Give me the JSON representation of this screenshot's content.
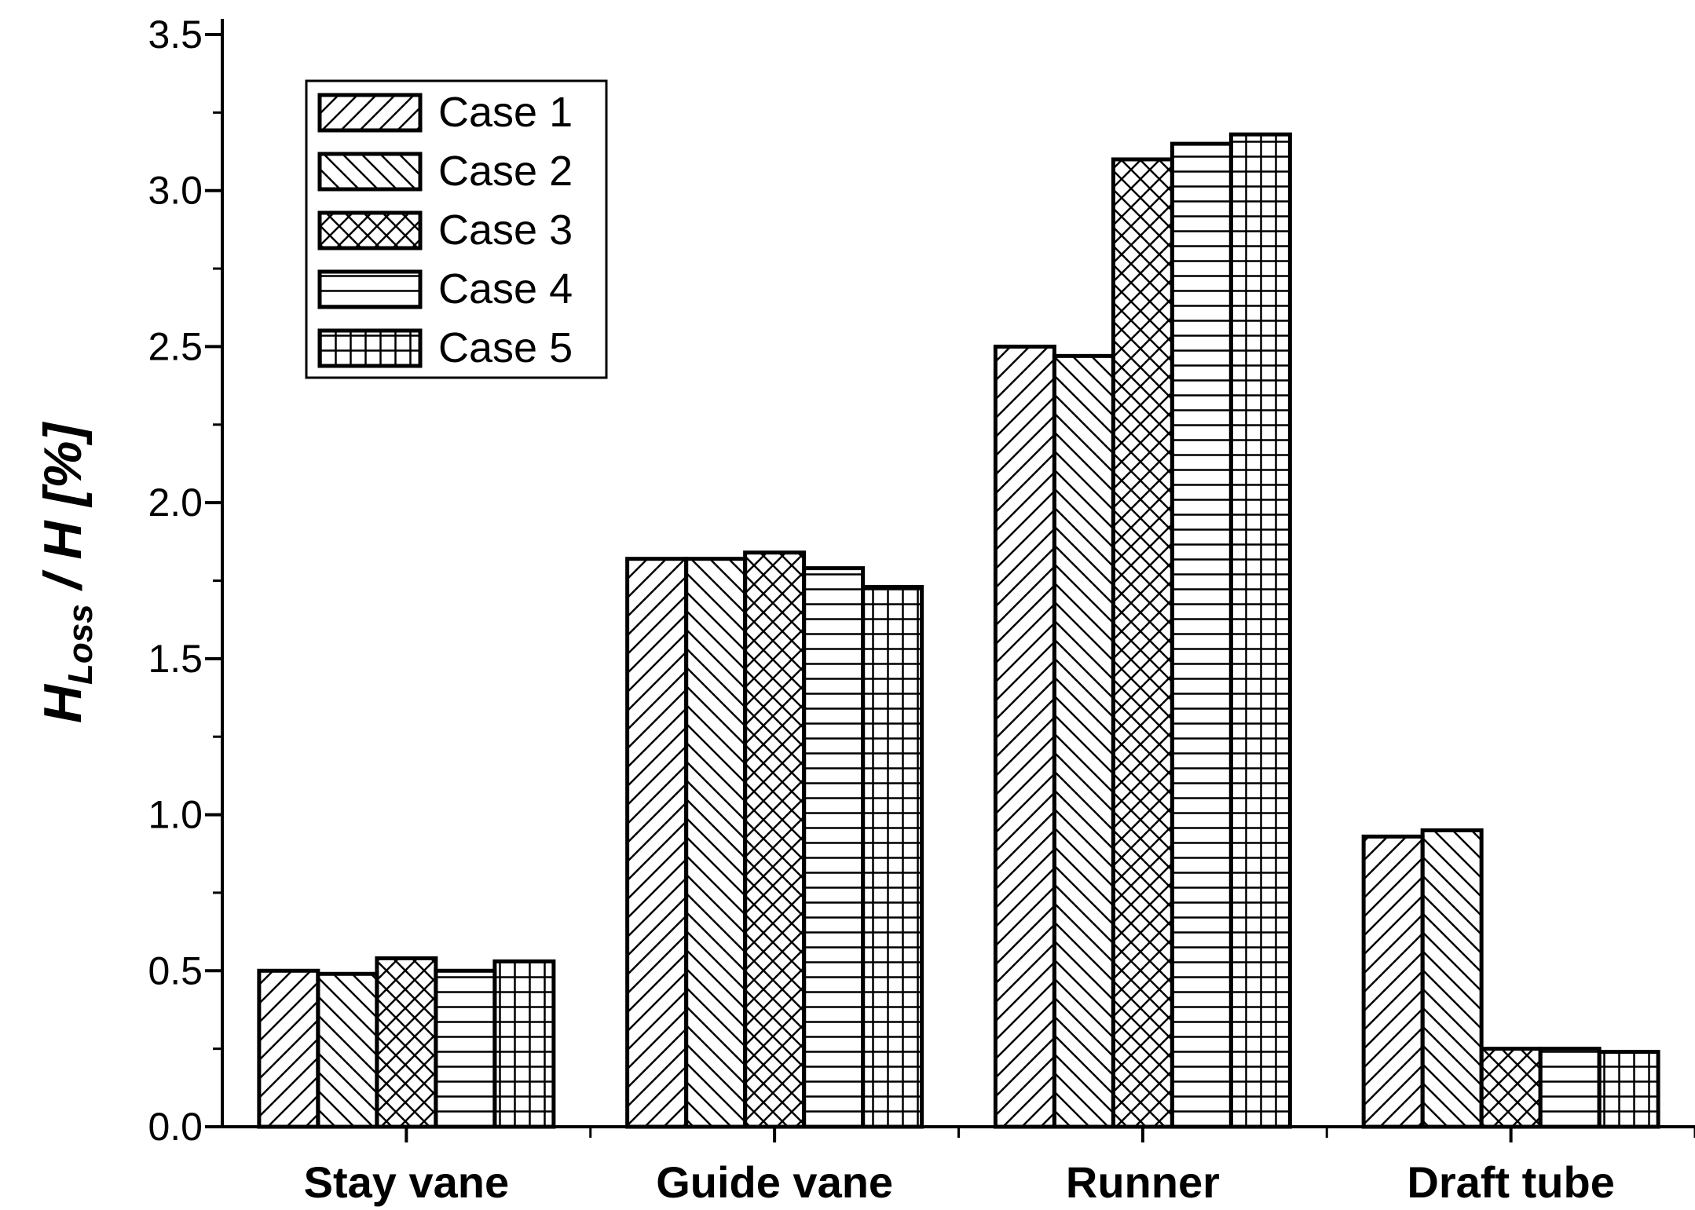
{
  "chart_data": {
    "type": "bar",
    "categories": [
      "Stay vane",
      "Guide vane",
      "Runner",
      "Draft tube"
    ],
    "series": [
      {
        "name": "Case 1",
        "pattern": "diag-up",
        "values": [
          0.5,
          1.82,
          2.5,
          0.93
        ]
      },
      {
        "name": "Case 2",
        "pattern": "diag-down",
        "values": [
          0.49,
          1.82,
          2.47,
          0.95
        ]
      },
      {
        "name": "Case 3",
        "pattern": "cross-diag",
        "values": [
          0.54,
          1.84,
          3.1,
          0.25
        ]
      },
      {
        "name": "Case 4",
        "pattern": "horizontal",
        "values": [
          0.5,
          1.79,
          3.15,
          0.25
        ]
      },
      {
        "name": "Case 5",
        "pattern": "grid",
        "values": [
          0.53,
          1.73,
          3.18,
          0.24
        ]
      }
    ],
    "ylabel": {
      "main": "H",
      "sub": "Loss",
      "rest": " / H  [%]"
    },
    "ylim": [
      0,
      3.5
    ],
    "yticks": [
      "0.0",
      "0.5",
      "1.0",
      "1.5",
      "2.0",
      "2.5",
      "3.0",
      "3.5"
    ],
    "ytick_values": [
      0,
      0.5,
      1.0,
      1.5,
      2.0,
      2.5,
      3.0,
      3.5
    ],
    "legend_position": "top-left",
    "grid": false
  }
}
